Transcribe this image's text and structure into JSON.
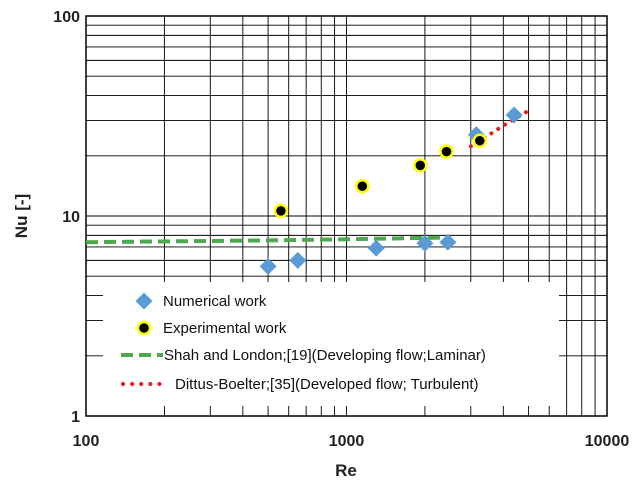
{
  "chart_data": {
    "type": "scatter",
    "xlabel": "Re",
    "ylabel": "Nu [-]",
    "x_scale": "log",
    "y_scale": "log",
    "xlim": [
      100,
      10000
    ],
    "ylim": [
      1,
      100
    ],
    "x_ticks": [
      "100",
      "1000",
      "10000"
    ],
    "y_ticks": [
      "1",
      "10",
      "100"
    ],
    "grid": true,
    "legend_position": "bottom-left",
    "series": [
      {
        "name": "Numerical work",
        "kind": "marker-diamond",
        "color": "#5b9bd5",
        "x": [
          500,
          650,
          1300,
          2000,
          2450,
          3150,
          4400
        ],
        "y": [
          5.6,
          6.0,
          6.9,
          7.3,
          7.4,
          25.5,
          32.0
        ]
      },
      {
        "name": "Experimental work",
        "kind": "marker-circle",
        "color": "#000000",
        "edge_color": "#ffff00",
        "x": [
          560,
          1150,
          1920,
          2420,
          3250
        ],
        "y": [
          10.6,
          14.1,
          17.9,
          21.0,
          23.8
        ]
      },
      {
        "name": "Shah and London;[19](Developing flow;Laminar)",
        "kind": "line-dashed",
        "color": "#4ea84e",
        "x": [
          100,
          500,
          1000,
          2300
        ],
        "y": [
          7.4,
          7.55,
          7.65,
          7.8
        ]
      },
      {
        "name": "Dittus-Boelter;[35](Developed flow; Turbulent)",
        "kind": "line-dotted",
        "color": "#e02020",
        "x": [
          3000,
          3500,
          4000,
          4500,
          5000
        ],
        "y": [
          22.3,
          25.3,
          28.3,
          31.0,
          33.6
        ]
      }
    ]
  }
}
